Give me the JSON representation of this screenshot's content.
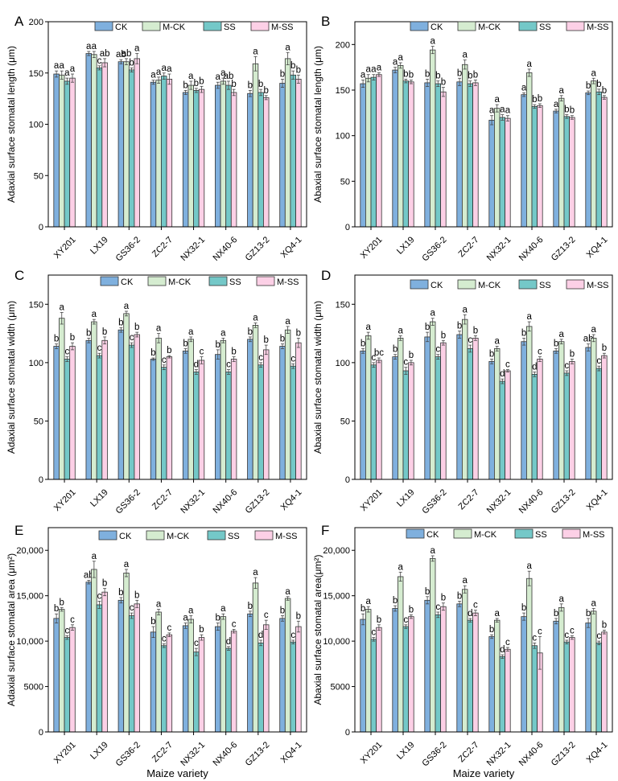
{
  "colors": {
    "CK": "#7fb0de",
    "M-CK": "#d5ecd0",
    "SS": "#74c8c8",
    "M-SS": "#fcd0e6"
  },
  "xlabel": "Maize variety",
  "chart_data": [
    {
      "type": "bar",
      "panel": "A",
      "ylabel": "Adaxial surface stomatal length (μm)",
      "ylim": [
        0,
        200
      ],
      "yticks": [
        "0",
        "50",
        "100",
        "150",
        "200"
      ],
      "ytick_values": [
        0,
        50,
        100,
        150,
        200
      ],
      "legend_position": "top",
      "categories": [
        "XY201",
        "LX19",
        "GS36-2",
        "ZC2-7",
        "NX32-1",
        "NX40-6",
        "GZ13-2",
        "XQ4-1"
      ],
      "series": [
        {
          "name": "CK",
          "values": [
            149,
            169,
            161,
            141,
            131,
            138,
            130,
            140
          ],
          "errors": [
            3,
            2,
            2,
            2,
            2,
            3,
            3,
            4
          ],
          "labels": [
            "a",
            "a",
            "ab",
            "a",
            "b",
            "a",
            "b",
            "b"
          ]
        },
        {
          "name": "M-CK",
          "values": [
            148,
            168,
            161,
            143,
            138,
            142,
            159,
            164
          ],
          "errors": [
            4,
            3,
            3,
            3,
            4,
            3,
            7,
            6
          ],
          "labels": [
            "a",
            "a",
            "ab",
            "a",
            "a",
            "a",
            "a",
            "a"
          ]
        },
        {
          "name": "SS",
          "values": [
            142,
            155,
            153,
            147,
            133,
            138,
            131,
            148
          ],
          "errors": [
            3,
            2,
            2,
            3,
            2,
            4,
            3,
            4
          ],
          "labels": [
            "a",
            "c",
            "b",
            "a",
            "b",
            "ab",
            "b",
            "b"
          ]
        },
        {
          "name": "M-SS",
          "values": [
            145,
            160,
            164,
            144,
            134,
            131,
            126,
            144
          ],
          "errors": [
            4,
            4,
            5,
            5,
            3,
            3,
            2,
            4
          ],
          "labels": [
            "a",
            "ab",
            "a",
            "a",
            "b",
            "b",
            "b",
            "b"
          ]
        }
      ]
    },
    {
      "type": "bar",
      "panel": "B",
      "ylabel": "Abaxial surface stomatal length (μm)",
      "ylim": [
        0,
        225
      ],
      "yticks": [
        "0",
        "50",
        "100",
        "150",
        "200"
      ],
      "ytick_values": [
        0,
        50,
        100,
        150,
        200
      ],
      "legend_position": "top",
      "categories": [
        "XY201",
        "LX19",
        "GS36-2",
        "ZC2-7",
        "NX32-1",
        "NX40-6",
        "GZ13-2",
        "XQ4-1"
      ],
      "series": [
        {
          "name": "CK",
          "values": [
            157,
            172,
            158,
            159,
            117,
            145,
            127,
            147
          ],
          "errors": [
            4,
            3,
            4,
            4,
            5,
            2,
            2,
            2
          ],
          "labels": [
            "a",
            "a",
            "b",
            "b",
            "a",
            "a",
            "a",
            "b"
          ]
        },
        {
          "name": "M-CK",
          "values": [
            163,
            177,
            194,
            178,
            130,
            169,
            141,
            160
          ],
          "errors": [
            4,
            3,
            4,
            5,
            4,
            4,
            3,
            3
          ],
          "labels": [
            "a",
            "a",
            "a",
            "a",
            "a",
            "a",
            "a",
            "a"
          ]
        },
        {
          "name": "SS",
          "values": [
            164,
            160,
            157,
            157,
            120,
            132,
            121,
            148
          ],
          "errors": [
            3,
            2,
            3,
            3,
            3,
            2,
            2,
            3
          ],
          "labels": [
            "a",
            "b",
            "b",
            "b",
            "a",
            "b",
            "b",
            "b"
          ]
        },
        {
          "name": "M-SS",
          "values": [
            167,
            159,
            148,
            158,
            119,
            133,
            120,
            142
          ],
          "errors": [
            2,
            2,
            5,
            3,
            3,
            2,
            2,
            2
          ],
          "labels": [
            "a",
            "b",
            "b",
            "b",
            "a",
            "b",
            "b",
            "b"
          ]
        }
      ]
    },
    {
      "type": "bar",
      "panel": "C",
      "ylabel": "Adaxial surface stomatal width (μm)",
      "ylim": [
        0,
        175
      ],
      "yticks": [
        "0",
        "50",
        "100",
        "150"
      ],
      "ytick_values": [
        0,
        50,
        100,
        150
      ],
      "legend_position": "top",
      "categories": [
        "XY201",
        "LX19",
        "GS36-2",
        "ZC2-7",
        "NX32-1",
        "NX40-6",
        "GZ13-2",
        "XQ4-1"
      ],
      "series": [
        {
          "name": "CK",
          "values": [
            114,
            119,
            128,
            103,
            110,
            107,
            120,
            114
          ],
          "errors": [
            2,
            2,
            2,
            1,
            2,
            4,
            2,
            2
          ],
          "labels": [
            "b",
            "b",
            "b",
            "b",
            "b",
            "b",
            "b",
            "b"
          ]
        },
        {
          "name": "M-CK",
          "values": [
            138,
            135,
            142,
            121,
            120,
            119,
            132,
            128
          ],
          "errors": [
            5,
            2,
            2,
            4,
            2,
            2,
            2,
            3
          ],
          "labels": [
            "a",
            "a",
            "a",
            "a",
            "a",
            "a",
            "a",
            "a"
          ]
        },
        {
          "name": "SS",
          "values": [
            103,
            106,
            115,
            96,
            92,
            92,
            98,
            97
          ],
          "errors": [
            2,
            2,
            2,
            2,
            2,
            2,
            2,
            2
          ],
          "labels": [
            "c",
            "c",
            "c",
            "c",
            "d",
            "c",
            "c",
            "c"
          ]
        },
        {
          "name": "M-SS",
          "values": [
            114,
            119,
            124,
            105,
            102,
            103,
            111,
            117
          ],
          "errors": [
            3,
            3,
            2,
            1,
            3,
            2,
            4,
            4
          ],
          "labels": [
            "b",
            "b",
            "b",
            "b",
            "c",
            "b",
            "b",
            "b"
          ]
        }
      ]
    },
    {
      "type": "bar",
      "panel": "D",
      "ylabel": "Abaxial surface stomatal width (μm)",
      "ylim": [
        0,
        175
      ],
      "yticks": [
        "0",
        "50",
        "100",
        "150"
      ],
      "ytick_values": [
        0,
        50,
        100,
        150
      ],
      "legend_position": "top",
      "categories": [
        "XY201",
        "LX19",
        "GS36-2",
        "ZC2-7",
        "NX32-1",
        "NX40-6",
        "GZ13-2",
        "XQ4-1"
      ],
      "series": [
        {
          "name": "CK",
          "values": [
            110,
            105,
            122,
            124,
            101,
            118,
            110,
            113
          ],
          "errors": [
            2,
            2,
            4,
            3,
            2,
            3,
            2,
            3
          ],
          "labels": [
            "b",
            "b",
            "b",
            "b",
            "b",
            "b",
            "b",
            "ab"
          ]
        },
        {
          "name": "M-CK",
          "values": [
            123,
            121,
            135,
            137,
            112,
            131,
            118,
            121
          ],
          "errors": [
            3,
            2,
            3,
            4,
            2,
            4,
            2,
            3
          ],
          "labels": [
            "a",
            "a",
            "a",
            "a",
            "a",
            "a",
            "a",
            "a"
          ]
        },
        {
          "name": "SS",
          "values": [
            98,
            93,
            105,
            112,
            84,
            90,
            91,
            95
          ],
          "errors": [
            2,
            3,
            2,
            3,
            2,
            2,
            2,
            2
          ],
          "labels": [
            "c",
            "c",
            "c",
            "c",
            "d",
            "d",
            "c",
            "c"
          ]
        },
        {
          "name": "M-SS",
          "values": [
            102,
            100,
            117,
            121,
            93,
            103,
            101,
            106
          ],
          "errors": [
            2,
            2,
            2,
            2,
            1,
            2,
            2,
            2
          ],
          "labels": [
            "bc",
            "b",
            "b",
            "b",
            "c",
            "c",
            "b",
            "b"
          ]
        }
      ]
    },
    {
      "type": "bar",
      "panel": "E",
      "ylabel": "Adaxial surface stomatal area (μm²)",
      "ylim": [
        0,
        22500
      ],
      "yticks": [
        "0",
        "5000",
        "10,000",
        "15,000",
        "20,000"
      ],
      "ytick_values": [
        0,
        5000,
        10000,
        15000,
        20000
      ],
      "legend_position": "top",
      "categories": [
        "XY201",
        "LX19",
        "GS36-2",
        "ZC2-7",
        "NX32-1",
        "NX40-6",
        "GZ13-2",
        "XQ4-1"
      ],
      "series": [
        {
          "name": "CK",
          "values": [
            12500,
            16500,
            14500,
            11000,
            11700,
            11600,
            13000,
            12500
          ],
          "errors": [
            500,
            200,
            300,
            600,
            300,
            400,
            300,
            300
          ],
          "labels": [
            "b",
            "ab",
            "b",
            "b",
            "a",
            "b",
            "b",
            "b"
          ]
        },
        {
          "name": "M-CK",
          "values": [
            13500,
            17900,
            17500,
            13200,
            12400,
            12700,
            16400,
            14700
          ],
          "errors": [
            200,
            900,
            400,
            300,
            400,
            300,
            600,
            200
          ],
          "labels": [
            "b",
            "a",
            "a",
            "a",
            "a",
            "a",
            "a",
            "a"
          ]
        },
        {
          "name": "SS",
          "values": [
            10400,
            14000,
            12800,
            9500,
            8800,
            9200,
            9800,
            9900
          ],
          "errors": [
            200,
            400,
            300,
            200,
            400,
            200,
            300,
            200
          ],
          "labels": [
            "c",
            "c",
            "c",
            "c",
            "c",
            "d",
            "d",
            "c"
          ]
        },
        {
          "name": "M-SS",
          "values": [
            11500,
            15400,
            14100,
            10700,
            10400,
            11100,
            11800,
            11600
          ],
          "errors": [
            300,
            400,
            400,
            200,
            300,
            200,
            500,
            600
          ],
          "labels": [
            "c",
            "b",
            "b",
            "c",
            "b",
            "c",
            "c",
            "b"
          ]
        }
      ]
    },
    {
      "type": "bar",
      "panel": "F",
      "ylabel": "Abaxial surface stomatal area(μm²)",
      "ylim": [
        0,
        22500
      ],
      "yticks": [
        "0",
        "5000",
        "10,000",
        "15,000",
        "20,000"
      ],
      "ytick_values": [
        0,
        5000,
        10000,
        15000,
        20000
      ],
      "legend_position": "top",
      "categories": [
        "XY201",
        "LX19",
        "GS36-2",
        "ZC2-7",
        "NX32-1",
        "NX40-6",
        "GZ13-2",
        "XQ4-1"
      ],
      "series": [
        {
          "name": "CK",
          "values": [
            12400,
            13600,
            14500,
            14100,
            10500,
            12700,
            12200,
            12000
          ],
          "errors": [
            600,
            300,
            400,
            300,
            200,
            400,
            300,
            500
          ],
          "labels": [
            "b",
            "b",
            "b",
            "b",
            "b",
            "b",
            "b",
            "b"
          ]
        },
        {
          "name": "M-CK",
          "values": [
            13500,
            17100,
            19100,
            15700,
            12300,
            16900,
            13700,
            13300
          ],
          "errors": [
            300,
            500,
            300,
            400,
            200,
            800,
            400,
            300
          ],
          "labels": [
            "a",
            "a",
            "a",
            "a",
            "a",
            "a",
            "a",
            "a"
          ]
        },
        {
          "name": "SS",
          "values": [
            10200,
            11600,
            12900,
            12300,
            8300,
            9500,
            9900,
            9800
          ],
          "errors": [
            200,
            200,
            300,
            200,
            200,
            300,
            200,
            200
          ],
          "labels": [
            "c",
            "c",
            "c",
            "d",
            "d",
            "c",
            "c",
            "c"
          ]
        },
        {
          "name": "M-SS",
          "values": [
            11500,
            12700,
            13800,
            13100,
            9100,
            8700,
            10400,
            11000
          ],
          "errors": [
            300,
            200,
            400,
            300,
            200,
            1800,
            200,
            200
          ],
          "labels": [
            "b",
            "b",
            "b",
            "c",
            "c",
            "c",
            "c",
            "b"
          ]
        }
      ]
    }
  ]
}
